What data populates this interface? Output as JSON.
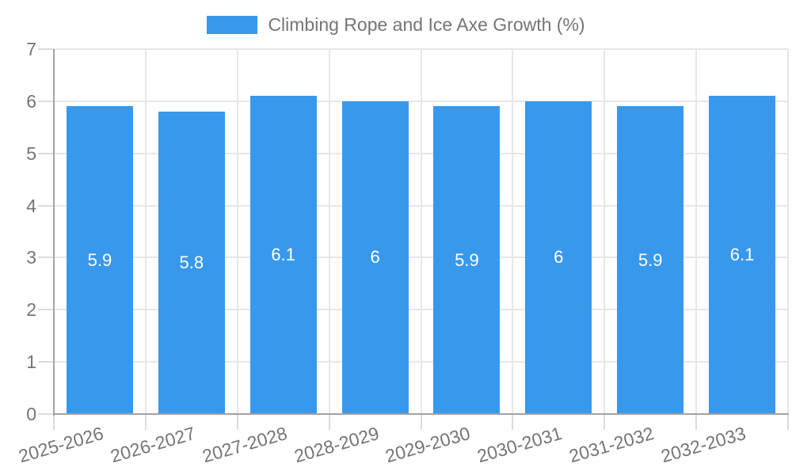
{
  "legend": {
    "label": "Climbing Rope and Ice Axe Growth (%)",
    "position": "top-center"
  },
  "colors": {
    "bar": "#3899EC",
    "axis_text": "#757575",
    "value_label_text": "#ffffff",
    "gridline": "#e7e7e7",
    "tick": "#dcdcdc",
    "axis_line_left": "#a2a2a2",
    "axis_line_bottom": "#a2a2a2",
    "background": "#ffffff"
  },
  "chart_data": {
    "type": "bar",
    "title": "Climbing Rope and Ice Axe Growth (%)",
    "categories": [
      "2025-2026",
      "2026-2027",
      "2027-2028",
      "2028-2029",
      "2029-2030",
      "2030-2031",
      "2031-2032",
      "2032-2033"
    ],
    "values": [
      5.9,
      5.8,
      6.1,
      6,
      5.9,
      6,
      5.9,
      6.1
    ],
    "value_labels": [
      "5.9",
      "5.8",
      "6.1",
      "6",
      "5.9",
      "6",
      "5.9",
      "6.1"
    ],
    "xlabel": "",
    "ylabel": "",
    "ylim": [
      0,
      7
    ],
    "yticks": [
      0,
      1,
      2,
      3,
      4,
      5,
      6,
      7
    ],
    "grid": true,
    "legend_position": "top-center",
    "x_label_rotation_deg": -16
  }
}
